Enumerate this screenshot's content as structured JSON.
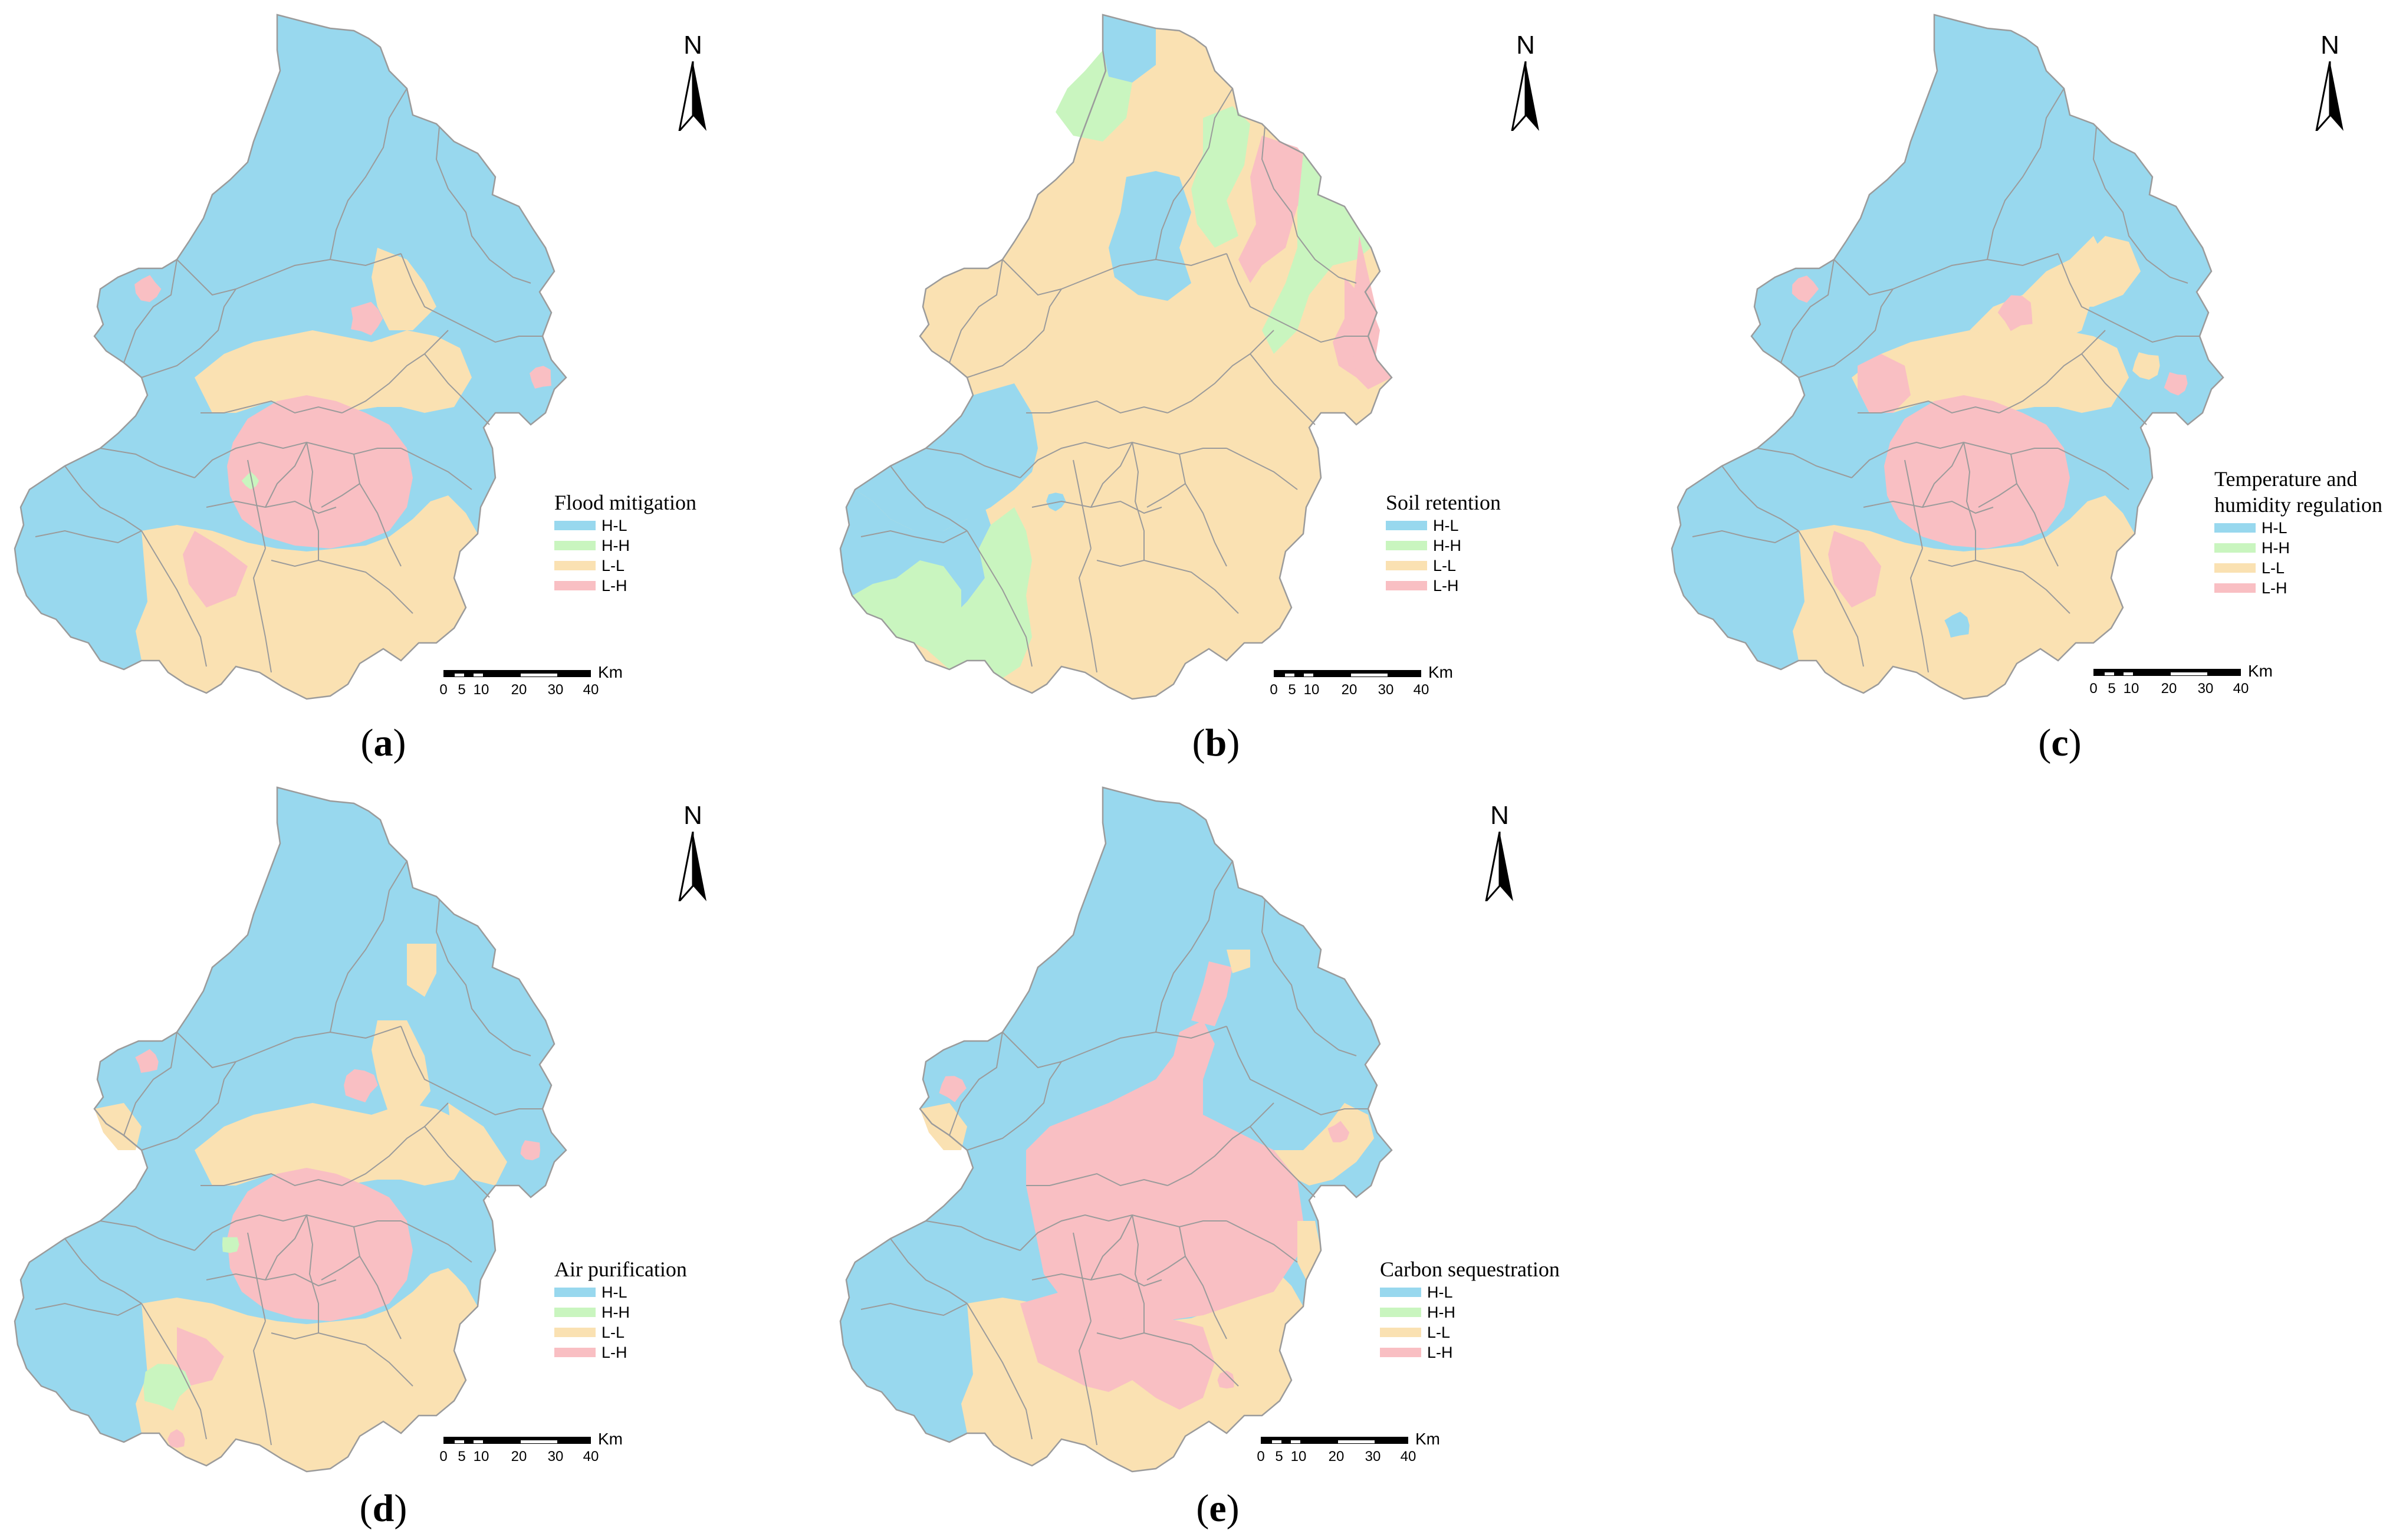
{
  "colors": {
    "H-L": "#98d8ee",
    "H-H": "#c9f5bf",
    "L-L": "#fae1b2",
    "L-H": "#f9bfc3",
    "border": "#9b9b9b"
  },
  "legend_classes": [
    "H-L",
    "H-H",
    "L-L",
    "L-H"
  ],
  "scale_ticks": [
    "0",
    "5",
    "10",
    "20",
    "30",
    "40"
  ],
  "scale_unit": "Km",
  "north_label": "N",
  "panels": [
    {
      "id": "a",
      "paren_open": "(",
      "letter": "a",
      "paren_close": ")",
      "legend_title": "Flood mitigation",
      "pattern": "flood"
    },
    {
      "id": "b",
      "paren_open": "(",
      "letter": "b",
      "paren_close": ")",
      "legend_title": "Soil retention",
      "pattern": "soil"
    },
    {
      "id": "c",
      "paren_open": "(",
      "letter": "c",
      "paren_close": ")",
      "legend_title": "Temperature and\nhumidity regulation",
      "pattern": "temp"
    },
    {
      "id": "d",
      "paren_open": "(",
      "letter": "d",
      "paren_close": ")",
      "legend_title": "Air purification",
      "pattern": "air"
    },
    {
      "id": "e",
      "paren_open": "(",
      "letter": "e",
      "paren_close": ")",
      "legend_title": "Carbon sequestration",
      "pattern": "carbon"
    }
  ]
}
